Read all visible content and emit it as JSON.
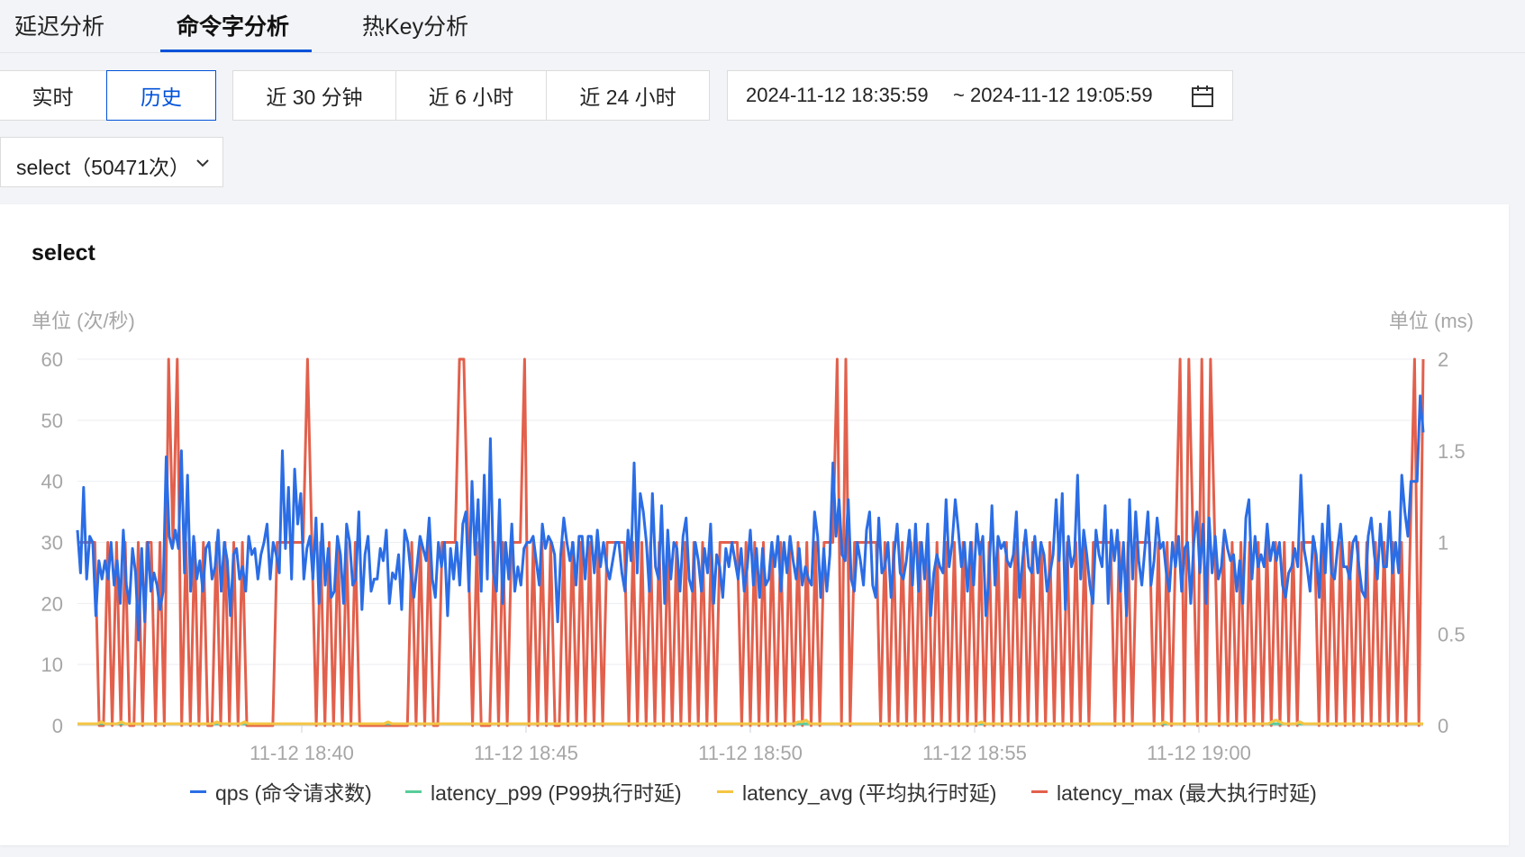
{
  "tabs": [
    {
      "label": "延迟分析",
      "active": false
    },
    {
      "label": "命令字分析",
      "active": true
    },
    {
      "label": "热Key分析",
      "active": false
    }
  ],
  "mode_buttons": {
    "realtime": "实时",
    "history": "历史",
    "selected": "历史"
  },
  "range_buttons": [
    "近 30 分钟",
    "近 6 小时",
    "近 24 小时"
  ],
  "date_range": {
    "start": "2024-11-12 18:35:59",
    "end": "~ 2024-11-12 19:05:59"
  },
  "command_select": {
    "value": "select（50471次）"
  },
  "icons": {
    "calendar": "calendar-icon",
    "chevron": "chevron-down-icon"
  },
  "chart_data": {
    "type": "line",
    "title": "select",
    "left_unit": "单位 (次/秒)",
    "right_unit": "单位 (ms)",
    "y_left": {
      "min": 0,
      "max": 60,
      "ticks": [
        0,
        10,
        20,
        30,
        40,
        50,
        60
      ]
    },
    "y_right": {
      "min": 0,
      "max": 2,
      "ticks": [
        "0",
        "0.5",
        "1",
        "1.5",
        "2"
      ]
    },
    "x_ticks": [
      "11-12 18:40",
      "11-12 18:45",
      "11-12 18:50",
      "11-12 18:55",
      "11-12 19:00"
    ],
    "x_tick_positions": [
      5,
      10,
      15,
      20,
      25
    ],
    "x_range": [
      0,
      30
    ],
    "grid": true,
    "legend_position": "bottom",
    "colors": {
      "qps": "#2b6de5",
      "latency_p99": "#58cc9a",
      "latency_avg": "#f5c542",
      "latency_max": "#e2604c"
    },
    "series": [
      {
        "name": "qps (命令请求数)",
        "axis": "left",
        "values": [
          32,
          25,
          39,
          24,
          31,
          30,
          18,
          27,
          24,
          27,
          24,
          30,
          23,
          27,
          20,
          32,
          23,
          20,
          29,
          25,
          14,
          29,
          17,
          30,
          22,
          25,
          23,
          19,
          22,
          44,
          31,
          29,
          32,
          29,
          45,
          25,
          41,
          22,
          31,
          24,
          27,
          22,
          29,
          30,
          24,
          26,
          32,
          22,
          30,
          27,
          18,
          28,
          29,
          24,
          26,
          22,
          31,
          28,
          29,
          24,
          28,
          30,
          33,
          24,
          30,
          28,
          25,
          45,
          29,
          39,
          24,
          42,
          33,
          38,
          24,
          29,
          31,
          24,
          34,
          20,
          33,
          23,
          29,
          21,
          22,
          31,
          28,
          20,
          33,
          30,
          23,
          24,
          35,
          19,
          28,
          31,
          22,
          24,
          24,
          29,
          27,
          32,
          20,
          25,
          24,
          28,
          19,
          32,
          30,
          25,
          21,
          26,
          31,
          29,
          27,
          34,
          24,
          21,
          30,
          26,
          30,
          18,
          29,
          24,
          30,
          23,
          33,
          35,
          22,
          40,
          28,
          37,
          22,
          41,
          24,
          47,
          25,
          22,
          37,
          20,
          30,
          24,
          33,
          22,
          26,
          23,
          29,
          30,
          30,
          31,
          27,
          23,
          33,
          29,
          31,
          30,
          28,
          17,
          28,
          34,
          30,
          27,
          30,
          23,
          31,
          31,
          24,
          31,
          31,
          25,
          32,
          26,
          30,
          26,
          24,
          27,
          30,
          30,
          25,
          22,
          32,
          27,
          43,
          25,
          38,
          35,
          30,
          22,
          38,
          26,
          24,
          36,
          20,
          32,
          24,
          30,
          29,
          22,
          31,
          34,
          24,
          22,
          30,
          27,
          22,
          29,
          25,
          33,
          20,
          28,
          26,
          21,
          29,
          26,
          30,
          27,
          24,
          29,
          22,
          26,
          32,
          23,
          29,
          21,
          29,
          23,
          24,
          30,
          26,
          31,
          22,
          30,
          25,
          31,
          27,
          24,
          29,
          23,
          26,
          24,
          23,
          35,
          31,
          21,
          29,
          22,
          28,
          43,
          31,
          37,
          28,
          27,
          37,
          24,
          22,
          30,
          27,
          23,
          32,
          35,
          23,
          21,
          34,
          25,
          26,
          30,
          21,
          28,
          33,
          25,
          24,
          27,
          32,
          23,
          33,
          22,
          30,
          24,
          33,
          18,
          25,
          28,
          26,
          25,
          37,
          26,
          30,
          37,
          32,
          26,
          30,
          22,
          30,
          23,
          33,
          28,
          31,
          18,
          24,
          36,
          23,
          31,
          29,
          30,
          27,
          26,
          28,
          35,
          21,
          27,
          32,
          26,
          25,
          31,
          25,
          30,
          28,
          22,
          25,
          28,
          37,
          27,
          38,
          19,
          31,
          26,
          28,
          41,
          24,
          32,
          28,
          23,
          20,
          32,
          28,
          26,
          36,
          20,
          32,
          27,
          32,
          22,
          30,
          18,
          37,
          24,
          35,
          27,
          23,
          29,
          35,
          23,
          27,
          34,
          29,
          30,
          25,
          22,
          30,
          26,
          31,
          22,
          29,
          30,
          20,
          30,
          35,
          25,
          33,
          20,
          34,
          25,
          31,
          24,
          26,
          32,
          29,
          27,
          28,
          22,
          27,
          20,
          34,
          37,
          24,
          31,
          26,
          28,
          26,
          33,
          27,
          30,
          27,
          30,
          23,
          21,
          25,
          26,
          29,
          26,
          41,
          29,
          26,
          22,
          31,
          28,
          21,
          33,
          25,
          36,
          25,
          24,
          29,
          33,
          26,
          26,
          24,
          30,
          31,
          26,
          22,
          21,
          31,
          34,
          28,
          24,
          33,
          26,
          26,
          35,
          25,
          30,
          25,
          41,
          35,
          31,
          40,
          40,
          40,
          54,
          48
        ]
      },
      {
        "name": "latency_p99 (P99执行时延)",
        "axis": "right",
        "values": [
          0.01,
          0.01,
          0.01,
          0.01,
          0.01,
          0.01,
          0.01,
          0.01,
          0.01,
          0.01,
          0.01,
          0.01,
          0.01,
          0.01,
          0.01,
          0.01,
          0.01,
          0.01,
          0.01,
          0.01,
          0.01,
          0.01,
          0.01,
          0.01,
          0.01,
          0.01,
          0.01,
          0.01,
          0.01,
          0.01,
          0.01
        ]
      },
      {
        "name": "latency_avg (平均执行时延)",
        "axis": "right",
        "values": [
          0.01,
          0.01,
          0.01,
          0.01,
          0.01,
          0.01,
          0.02,
          0.01,
          0.01,
          0.01,
          0.01,
          0.02,
          0.01,
          0.01,
          0.01,
          0.01,
          0.01,
          0.01,
          0.01,
          0.01,
          0.01,
          0.01,
          0.01,
          0.01,
          0.01,
          0.01,
          0.01,
          0.01,
          0.01,
          0.01,
          0.01,
          0.01,
          0.01,
          0.01,
          0.01,
          0.02,
          0.01,
          0.01,
          0.01,
          0.01,
          0.01,
          0.01,
          0.02,
          0.01,
          0.01,
          0.01,
          0.01,
          0.01,
          0.01,
          0.01,
          0.01,
          0.01,
          0.01,
          0.01,
          0.01,
          0.01,
          0.01,
          0.01,
          0.01,
          0.01,
          0.01,
          0.01,
          0.01,
          0.01,
          0.01,
          0.01,
          0.01,
          0.01,
          0.01,
          0.01,
          0.01,
          0.01,
          0.01,
          0.01,
          0.01,
          0.01,
          0.01,
          0.01,
          0.02,
          0.01,
          0.01,
          0.01,
          0.01,
          0.01,
          0.01,
          0.01,
          0.01,
          0.01,
          0.01,
          0.01,
          0.01,
          0.01,
          0.01,
          0.01,
          0.01,
          0.01,
          0.01,
          0.01,
          0.01,
          0.01,
          0.01,
          0.01,
          0.01,
          0.01,
          0.01,
          0.01,
          0.01,
          0.01,
          0.01,
          0.01,
          0.01,
          0.01,
          0.01,
          0.01,
          0.01,
          0.01,
          0.01,
          0.01,
          0.01,
          0.01,
          0.01,
          0.01,
          0.01,
          0.01,
          0.01,
          0.01,
          0.01,
          0.01,
          0.01,
          0.01,
          0.01,
          0.01,
          0.01,
          0.01,
          0.01,
          0.01,
          0.01,
          0.01,
          0.01,
          0.01,
          0.01,
          0.01,
          0.01,
          0.01,
          0.01,
          0.01,
          0.01,
          0.01,
          0.01,
          0.01,
          0.01,
          0.01,
          0.01,
          0.01,
          0.01,
          0.01,
          0.01,
          0.01,
          0.01,
          0.01,
          0.01,
          0.01,
          0.01,
          0.01,
          0.01,
          0.01,
          0.01,
          0.01,
          0.01,
          0.01,
          0.01,
          0.01,
          0.01,
          0.01,
          0.01,
          0.01,
          0.01,
          0.01,
          0.01,
          0.01,
          0.01,
          0.02,
          0.02,
          0.03,
          0.01,
          0.01,
          0.01,
          0.01,
          0.01,
          0.01,
          0.01,
          0.01,
          0.01,
          0.01,
          0.01,
          0.01,
          0.01,
          0.01,
          0.01,
          0.01,
          0.01,
          0.01,
          0.01,
          0.01,
          0.01,
          0.01,
          0.01,
          0.01,
          0.01,
          0.01,
          0.01,
          0.01,
          0.01,
          0.01,
          0.01,
          0.01,
          0.01,
          0.01,
          0.01,
          0.01,
          0.01,
          0.01,
          0.01,
          0.01,
          0.01,
          0.01,
          0.01,
          0.02,
          0.01,
          0.01,
          0.01,
          0.01,
          0.01,
          0.01,
          0.01,
          0.01,
          0.01,
          0.01,
          0.01,
          0.01,
          0.01,
          0.01,
          0.01,
          0.01,
          0.01,
          0.01,
          0.01,
          0.01,
          0.01,
          0.01,
          0.01,
          0.01,
          0.01,
          0.01,
          0.01,
          0.01,
          0.01,
          0.01,
          0.01,
          0.01,
          0.01,
          0.01,
          0.01,
          0.01,
          0.01,
          0.01,
          0.01,
          0.01,
          0.01,
          0.01,
          0.01,
          0.01,
          0.01,
          0.02,
          0.01,
          0.01,
          0.01,
          0.01,
          0.01,
          0.01,
          0.01,
          0.01,
          0.01,
          0.01,
          0.01,
          0.01,
          0.01,
          0.01,
          0.01,
          0.01,
          0.01,
          0.01,
          0.01,
          0.01,
          0.01,
          0.01,
          0.01,
          0.01,
          0.01,
          0.01,
          0.02,
          0.03,
          0.02,
          0.01,
          0.01,
          0.01,
          0.01,
          0.02,
          0.01,
          0.01,
          0.01,
          0.01,
          0.01,
          0.01,
          0.01,
          0.01,
          0.01,
          0.01,
          0.01,
          0.01,
          0.01,
          0.01,
          0.01,
          0.01,
          0.01,
          0.01,
          0.01,
          0.01,
          0.01,
          0.01,
          0.01,
          0.01,
          0.01,
          0.01,
          0.01,
          0.01,
          0.01,
          0.01,
          0.01
        ]
      },
      {
        "name": "latency_max (最大执行时延)",
        "axis": "right",
        "values": [
          1,
          1,
          1,
          1,
          1,
          0,
          0,
          1,
          0,
          1,
          0,
          1,
          0,
          0,
          1,
          0,
          1,
          1,
          0,
          1,
          0,
          2,
          1,
          2,
          0,
          1,
          0,
          1,
          0,
          1,
          0,
          0,
          1,
          0,
          1,
          0,
          1,
          0,
          1,
          0,
          0,
          0,
          0,
          0,
          0,
          0,
          1,
          1,
          1,
          1,
          1,
          1,
          1,
          2,
          1,
          0,
          1,
          0,
          1,
          0,
          1,
          0,
          1,
          0,
          1,
          0,
          0,
          0,
          0,
          0,
          0,
          0,
          0,
          0,
          0,
          0,
          0,
          1,
          0,
          1,
          0,
          1,
          0,
          0,
          1,
          1,
          1,
          1,
          2,
          2,
          1,
          0,
          1,
          0,
          0,
          0,
          1,
          0,
          1,
          0,
          1,
          1,
          1,
          2,
          0,
          1,
          0,
          1,
          0,
          1,
          0,
          0,
          1,
          0,
          1,
          0,
          1,
          0,
          1,
          0,
          1,
          0,
          1,
          1,
          1,
          1,
          1,
          0,
          1,
          0,
          1,
          0,
          1,
          0,
          1,
          0,
          1,
          0,
          1,
          0,
          1,
          0,
          1,
          0,
          1,
          0,
          1,
          0,
          1,
          1,
          1,
          1,
          1,
          0,
          1,
          0,
          1,
          0,
          1,
          0,
          1,
          0,
          1,
          0,
          1,
          0,
          1,
          0,
          1,
          0,
          1,
          0,
          1,
          1,
          1,
          2,
          0,
          2,
          0,
          1,
          1,
          1,
          1,
          1,
          1,
          0,
          1,
          0,
          1,
          0,
          1,
          0,
          1,
          0,
          1,
          0,
          1,
          0,
          1,
          0,
          1,
          0,
          1,
          0,
          1,
          0,
          1,
          0,
          1,
          0,
          1,
          0,
          1,
          0,
          1,
          0,
          1,
          0,
          1,
          0,
          1,
          0,
          1,
          0,
          1,
          0,
          1,
          0,
          1,
          0,
          1,
          0,
          1,
          0,
          1,
          1,
          1,
          1,
          1,
          0,
          1,
          0,
          1,
          0,
          1,
          1,
          1,
          1,
          0,
          1,
          0,
          1,
          0,
          1,
          2,
          0,
          2,
          1,
          0,
          2,
          0,
          2,
          1,
          0,
          1,
          0,
          1,
          0,
          1,
          0,
          1,
          0,
          1,
          0,
          1,
          0,
          1,
          0,
          1,
          0,
          1,
          0,
          1,
          1,
          1,
          1,
          0,
          1,
          0,
          1,
          0,
          1,
          0,
          1,
          0,
          1,
          0,
          1,
          0,
          1,
          0,
          1,
          0,
          1,
          0,
          1,
          0,
          1,
          2,
          0,
          2
        ]
      }
    ]
  },
  "legend": [
    {
      "label": "qps (命令请求数)",
      "color": "#2b6de5"
    },
    {
      "label": "latency_p99 (P99执行时延)",
      "color": "#58cc9a"
    },
    {
      "label": "latency_avg (平均执行时延)",
      "color": "#f5c542"
    },
    {
      "label": "latency_max (最大执行时延)",
      "color": "#e2604c"
    }
  ]
}
